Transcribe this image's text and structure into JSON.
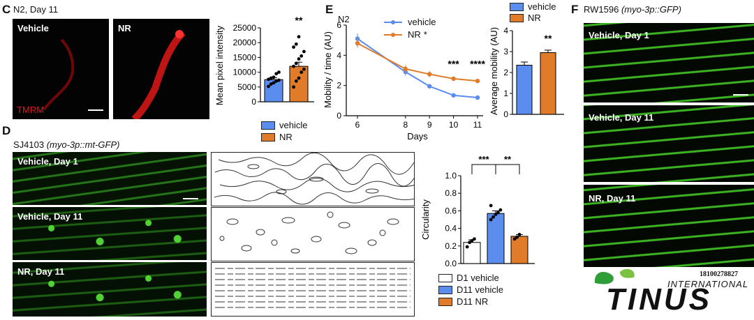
{
  "colors": {
    "vehicle": "#5b8def",
    "nr": "#e07b2a",
    "white": "#ffffff",
    "tmrm": "#d01010"
  },
  "panel_c": {
    "letter": "C",
    "title": "N2, Day 11",
    "image_labels": [
      "Vehicle",
      "NR"
    ],
    "stain_label": "TMRM",
    "legend": [
      "vehicle",
      "NR"
    ]
  },
  "panel_d": {
    "letter": "D",
    "title_strain": "SJ4103",
    "title_genotype": "(myo-3p::mt-GFP)",
    "image_labels": [
      "Vehicle, Day 1",
      "Vehicle, Day 11",
      "NR, Day 11"
    ],
    "legend": [
      "D1 vehicle",
      "D11 vehicle",
      "D11 NR"
    ]
  },
  "panel_e": {
    "letter": "E",
    "title": "N2",
    "legend": [
      "vehicle",
      "NR"
    ]
  },
  "panel_f": {
    "letter": "F",
    "title_strain": "RW1596",
    "title_genotype": "(myo-3p::GFP)",
    "image_labels": [
      "Vehicle, Day 1",
      "Vehicle, Day 11",
      "NR, Day 11"
    ]
  },
  "watermark": {
    "phone": "18100278827",
    "brand_top": "INTERNATIONAL",
    "brand_main": "TINUS"
  },
  "chart_data": [
    {
      "id": "c_bar",
      "type": "bar",
      "categories": [
        "vehicle",
        "NR"
      ],
      "values": [
        7500,
        12000
      ],
      "errors": [
        600,
        1400
      ],
      "points": [
        [
          5200,
          6000,
          6400,
          7000,
          7300,
          7600,
          8000,
          8300,
          9500,
          10000
        ],
        [
          5000,
          7000,
          8000,
          10000,
          11000,
          12000,
          13000,
          14500,
          15500,
          17000,
          18500,
          19500,
          22000
        ]
      ],
      "ylabel": "Mean pixel intensity",
      "yticks": [
        0,
        5000,
        10000,
        15000,
        20000,
        25000
      ],
      "ylim": [
        0,
        25000
      ],
      "annotations": [
        {
          "category": "NR",
          "text": "**"
        }
      ]
    },
    {
      "id": "e_line",
      "type": "line",
      "x": [
        6,
        8,
        9,
        10,
        11
      ],
      "series": [
        {
          "name": "vehicle",
          "values": [
            5.1,
            2.9,
            1.95,
            1.35,
            1.2
          ],
          "errors": [
            0.35,
            0.25,
            0.12,
            0.08,
            0.08
          ]
        },
        {
          "name": "NR",
          "values": [
            4.8,
            3.1,
            2.75,
            2.45,
            2.3
          ],
          "errors": [
            0.3,
            0.25,
            0.2,
            0.15,
            0.15
          ]
        }
      ],
      "legend_suffix": [
        "",
        "*"
      ],
      "xlabel": "Days",
      "ylabel": "Mobility / time (AU)",
      "yticks": [
        0,
        2,
        4,
        6
      ],
      "ylim": [
        0,
        6
      ],
      "annotations": [
        {
          "x": 10,
          "text": "***"
        },
        {
          "x": 11,
          "text": "****"
        }
      ]
    },
    {
      "id": "e_bar",
      "type": "bar",
      "categories": [
        "vehicle",
        "NR"
      ],
      "values": [
        2.35,
        2.95
      ],
      "errors": [
        0.15,
        0.12
      ],
      "ylabel": "Average mobility (AU)",
      "yticks": [
        0,
        1,
        2,
        3,
        4
      ],
      "ylim": [
        0,
        4
      ],
      "annotations": [
        {
          "category": "NR",
          "text": "**"
        }
      ]
    },
    {
      "id": "d_bar",
      "type": "bar",
      "categories": [
        "D1 vehicle",
        "D11 vehicle",
        "D11 NR"
      ],
      "values": [
        0.24,
        0.57,
        0.31
      ],
      "errors": [
        0.03,
        0.03,
        0.02
      ],
      "points": [
        [
          0.19,
          0.24,
          0.26,
          0.28
        ],
        [
          0.5,
          0.53,
          0.56,
          0.58,
          0.61,
          0.66
        ],
        [
          0.28,
          0.3,
          0.33
        ]
      ],
      "ylabel": "Circularity",
      "yticks": [
        0.0,
        0.2,
        0.4,
        0.6,
        0.8,
        1.0
      ],
      "ylim": [
        0,
        1.0
      ],
      "brackets": [
        {
          "from": 0,
          "to": 1,
          "text": "***"
        },
        {
          "from": 1,
          "to": 2,
          "text": "**"
        }
      ]
    }
  ]
}
